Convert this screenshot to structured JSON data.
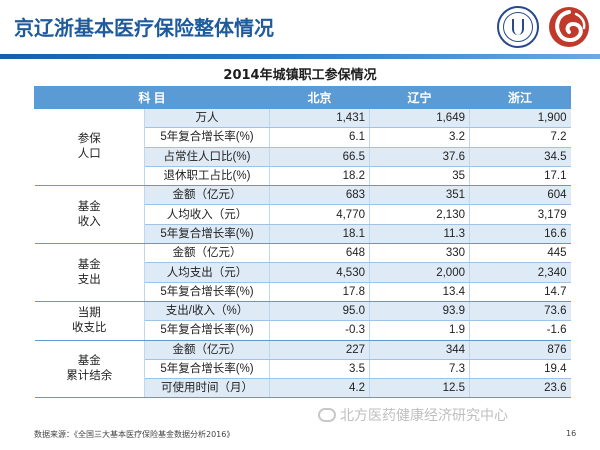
{
  "slide_title": "京辽浙基本医疗保险整体情况",
  "table_title": "2014年城镇职工参保情况",
  "header": {
    "item": "科    目",
    "beijing": "北京",
    "liaoning": "辽宁",
    "zhejiang": "浙江"
  },
  "groups": [
    {
      "label": "参保\n人口",
      "rows": [
        {
          "metric": "万人",
          "beijing": "1,431",
          "liaoning": "1,649",
          "zhejiang": "1,900"
        },
        {
          "metric": "5年复合增长率(%)",
          "beijing": "6.1",
          "liaoning": "3.2",
          "zhejiang": "7.2"
        },
        {
          "metric": "占常住人口比(%)",
          "beijing": "66.5",
          "liaoning": "37.6",
          "zhejiang": "34.5"
        },
        {
          "metric": "退休职工占比(%)",
          "beijing": "18.2",
          "liaoning": "35",
          "zhejiang": "17.1"
        }
      ]
    },
    {
      "label": "基金\n收入",
      "rows": [
        {
          "metric": "金额（亿元）",
          "beijing": "683",
          "liaoning": "351",
          "zhejiang": "604"
        },
        {
          "metric": "人均收入（元）",
          "beijing": "4,770",
          "liaoning": "2,130",
          "zhejiang": "3,179"
        },
        {
          "metric": "5年复合增长率(%)",
          "beijing": "18.1",
          "liaoning": "11.3",
          "zhejiang": "16.6"
        }
      ]
    },
    {
      "label": "基金\n支出",
      "rows": [
        {
          "metric": "金额（亿元）",
          "beijing": "648",
          "liaoning": "330",
          "zhejiang": "445"
        },
        {
          "metric": "人均支出（元）",
          "beijing": "4,530",
          "liaoning": "2,000",
          "zhejiang": "2,340"
        },
        {
          "metric": "5年复合增长率(%)",
          "beijing": "17.8",
          "liaoning": "13.4",
          "zhejiang": "14.7"
        }
      ]
    },
    {
      "label": "当期\n收支比",
      "rows": [
        {
          "metric": "支出/收入（%）",
          "beijing": "95.0",
          "liaoning": "93.9",
          "zhejiang": "73.6"
        },
        {
          "metric": "5年复合增长率(%)",
          "beijing": "-0.3",
          "liaoning": "1.9",
          "zhejiang": "-1.6"
        }
      ]
    },
    {
      "label": "基金\n累计结余",
      "rows": [
        {
          "metric": "金额（亿元）",
          "beijing": "227",
          "liaoning": "344",
          "zhejiang": "876"
        },
        {
          "metric": "5年复合增长率(%)",
          "beijing": "3.5",
          "liaoning": "7.3",
          "zhejiang": "19.4"
        },
        {
          "metric": "可使用时间（月）",
          "beijing": "4.2",
          "liaoning": "12.5",
          "zhejiang": "23.6"
        }
      ]
    }
  ],
  "source_note": "数据来源：《全国三大基本医疗保险基金数据分析2016》",
  "watermark": "北方医药健康经济研究中心",
  "page_number": "16",
  "colors": {
    "title": "#1f5b9c",
    "header_bg": "#5b9bd5",
    "row_shade": "#deebf7",
    "logo_red": "#c0392b"
  }
}
